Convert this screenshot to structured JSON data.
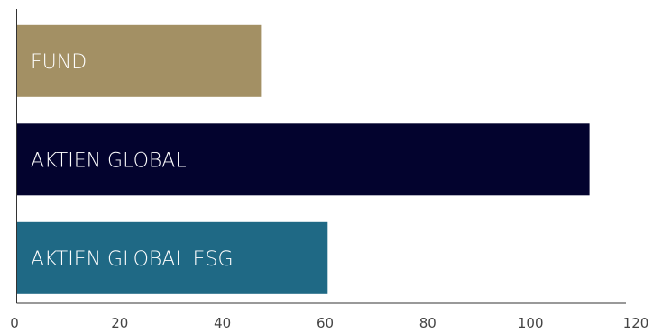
{
  "chart_data": {
    "type": "bar",
    "orientation": "horizontal",
    "categories": [
      "FUND",
      "AKTIEN GLOBAL",
      "AKTIEN GLOBAL ESG"
    ],
    "values": [
      47.5,
      111.5,
      60.5
    ],
    "colors": [
      "#a39064",
      "#03032e",
      "#1f6985"
    ],
    "xlim": [
      0,
      120
    ],
    "xticks": [
      0,
      20,
      40,
      60,
      80,
      100,
      120
    ],
    "xtick_labels": [
      "0",
      "20",
      "40",
      "60",
      "80",
      "100",
      "120"
    ],
    "title": "",
    "xlabel": "",
    "ylabel": "",
    "grid": false,
    "legend": "none",
    "label_color": "#ffffff"
  }
}
